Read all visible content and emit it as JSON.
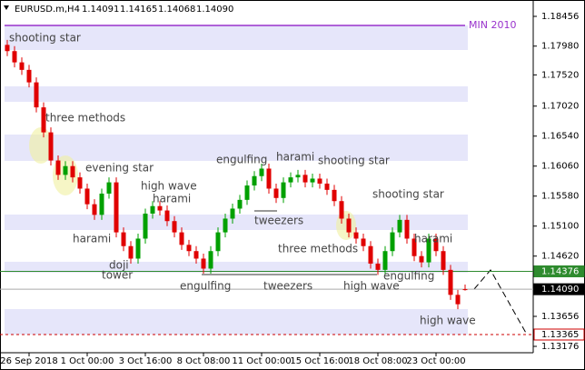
{
  "chart_data": {
    "type": "candlestick",
    "symbol": "EURUSD.m,H4",
    "quote_labels": [
      "1.14091",
      "1.14165",
      "1.14068",
      "1.14090"
    ],
    "up_color": "#00a000",
    "down_color": "#e00000",
    "zone_color": "#e6e6fa",
    "open": [
      1.18,
      1.179,
      1.1772,
      1.176,
      1.174,
      1.17,
      1.166,
      1.1615,
      1.1592,
      1.1606,
      1.1588,
      1.157,
      1.1545,
      1.1528,
      1.1562,
      1.158,
      1.15,
      1.1478,
      1.1458,
      1.149,
      1.153,
      1.1542,
      1.1535,
      1.1518,
      1.15,
      1.148,
      1.147,
      1.1458,
      1.1442,
      1.147,
      1.15,
      1.1522,
      1.1538,
      1.1552,
      1.1575,
      1.159,
      1.1602,
      1.157,
      1.1555,
      1.158,
      1.1588,
      1.1592,
      1.158,
      1.1586,
      1.1578,
      1.1568,
      1.155,
      1.1522,
      1.15,
      1.149,
      1.1478,
      1.145,
      1.144,
      1.147,
      1.15,
      1.152,
      1.149,
      1.1462,
      1.1452,
      1.149,
      1.147,
      1.144,
      1.14,
      1.14091
    ],
    "high": [
      1.1808,
      1.1798,
      1.178,
      1.1768,
      1.1748,
      1.1708,
      1.1668,
      1.1623,
      1.1614,
      1.1614,
      1.1596,
      1.1578,
      1.1553,
      1.157,
      1.1588,
      1.1588,
      1.1508,
      1.1486,
      1.1498,
      1.1538,
      1.155,
      1.155,
      1.1543,
      1.1526,
      1.1508,
      1.1488,
      1.1478,
      1.1466,
      1.1478,
      1.1508,
      1.153,
      1.1546,
      1.156,
      1.1583,
      1.1598,
      1.161,
      1.161,
      1.1578,
      1.1588,
      1.1596,
      1.16,
      1.16,
      1.1594,
      1.1594,
      1.1586,
      1.1576,
      1.1558,
      1.153,
      1.1508,
      1.1498,
      1.1486,
      1.1458,
      1.1478,
      1.1508,
      1.1528,
      1.1528,
      1.1498,
      1.147,
      1.1498,
      1.1498,
      1.1478,
      1.1448,
      1.1408,
      1.14165
    ],
    "low": [
      1.1782,
      1.1764,
      1.1752,
      1.1732,
      1.1692,
      1.1652,
      1.1607,
      1.1584,
      1.1584,
      1.158,
      1.1562,
      1.1537,
      1.152,
      1.152,
      1.1554,
      1.1492,
      1.147,
      1.145,
      1.145,
      1.1482,
      1.1522,
      1.1527,
      1.151,
      1.1492,
      1.1472,
      1.1462,
      1.145,
      1.1434,
      1.1434,
      1.1462,
      1.1492,
      1.1514,
      1.153,
      1.1544,
      1.1567,
      1.1582,
      1.1562,
      1.1547,
      1.1547,
      1.1572,
      1.158,
      1.1572,
      1.1572,
      1.157,
      1.156,
      1.1542,
      1.1514,
      1.1492,
      1.1482,
      1.147,
      1.1442,
      1.1432,
      1.1432,
      1.1462,
      1.1492,
      1.1482,
      1.1454,
      1.1444,
      1.1444,
      1.1462,
      1.1432,
      1.1392,
      1.1377,
      1.14068
    ],
    "close": [
      1.179,
      1.1772,
      1.176,
      1.174,
      1.17,
      1.166,
      1.1615,
      1.1592,
      1.1606,
      1.1588,
      1.157,
      1.1545,
      1.1528,
      1.1562,
      1.158,
      1.15,
      1.1478,
      1.1458,
      1.149,
      1.153,
      1.1542,
      1.1535,
      1.1518,
      1.15,
      1.148,
      1.147,
      1.1458,
      1.1442,
      1.147,
      1.15,
      1.1522,
      1.1538,
      1.1552,
      1.1575,
      1.159,
      1.1602,
      1.157,
      1.1555,
      1.158,
      1.1588,
      1.1592,
      1.158,
      1.1586,
      1.1578,
      1.1568,
      1.155,
      1.1522,
      1.15,
      1.149,
      1.1478,
      1.145,
      1.144,
      1.147,
      1.15,
      1.152,
      1.149,
      1.1462,
      1.1452,
      1.149,
      1.147,
      1.144,
      1.14,
      1.1385,
      1.1409
    ],
    "xlim": [
      -0.375,
      72.375
    ],
    "xticks": [
      {
        "value": 3,
        "label": "26 Sep 2018"
      },
      {
        "value": 11,
        "label": "1 Oct 00:00"
      },
      {
        "value": 19,
        "label": "3 Oct 16:00"
      },
      {
        "value": 27,
        "label": "8 Oct 08:00"
      },
      {
        "value": 35,
        "label": "11 Oct 00:00"
      },
      {
        "value": 43,
        "label": "15 Oct 16:00"
      },
      {
        "value": 51,
        "label": "18 Oct 08:00"
      },
      {
        "value": 59,
        "label": "23 Oct 00:00"
      }
    ],
    "ylim": [
      1.13074,
      1.18718
    ],
    "yticks": [
      1.18456,
      {
        "value": 1.1798,
        "label": "1.17980"
      },
      {
        "value": 1.1752,
        "label": "1.17520"
      },
      {
        "value": 1.1702,
        "label": "1.17020"
      },
      {
        "value": 1.1654,
        "label": "1.16540"
      },
      {
        "value": 1.1606,
        "label": "1.16060"
      },
      {
        "value": 1.1558,
        "label": "1.15580"
      },
      {
        "value": 1.151,
        "label": "1.15100"
      },
      {
        "value": 1.1462,
        "label": "1.14620"
      },
      1.13656,
      1.13176
    ],
    "zones": [
      [
        1.17918,
        1.18311
      ],
      [
        1.17089,
        1.17336
      ],
      [
        1.16143,
        1.16565
      ],
      [
        1.15038,
        1.15285
      ],
      [
        1.14354,
        1.14529
      ],
      [
        1.13365,
        1.13772
      ]
    ],
    "level": {
      "label": "MIN 2010",
      "value": 1.18311,
      "color": "#9932cc"
    },
    "price_lines": [
      {
        "value": 1.14376,
        "label": "1.14376",
        "color": "#2e8b2e"
      },
      {
        "value": 1.1409,
        "label": "1.14090",
        "color": "#000000"
      },
      {
        "value": 1.13365,
        "label": "1.13365",
        "color": "#cc0000"
      }
    ],
    "annotations": [
      "shooting star",
      "three methods",
      "evening star",
      "high wave",
      "harami",
      "engulfing",
      "harami",
      "shooting star",
      "shooting star",
      "tweezers",
      "harami",
      "three methods",
      "harami",
      "doji",
      "tower",
      "engulfing",
      "tweezers",
      "high wave",
      "engulfing",
      "high wave"
    ]
  }
}
